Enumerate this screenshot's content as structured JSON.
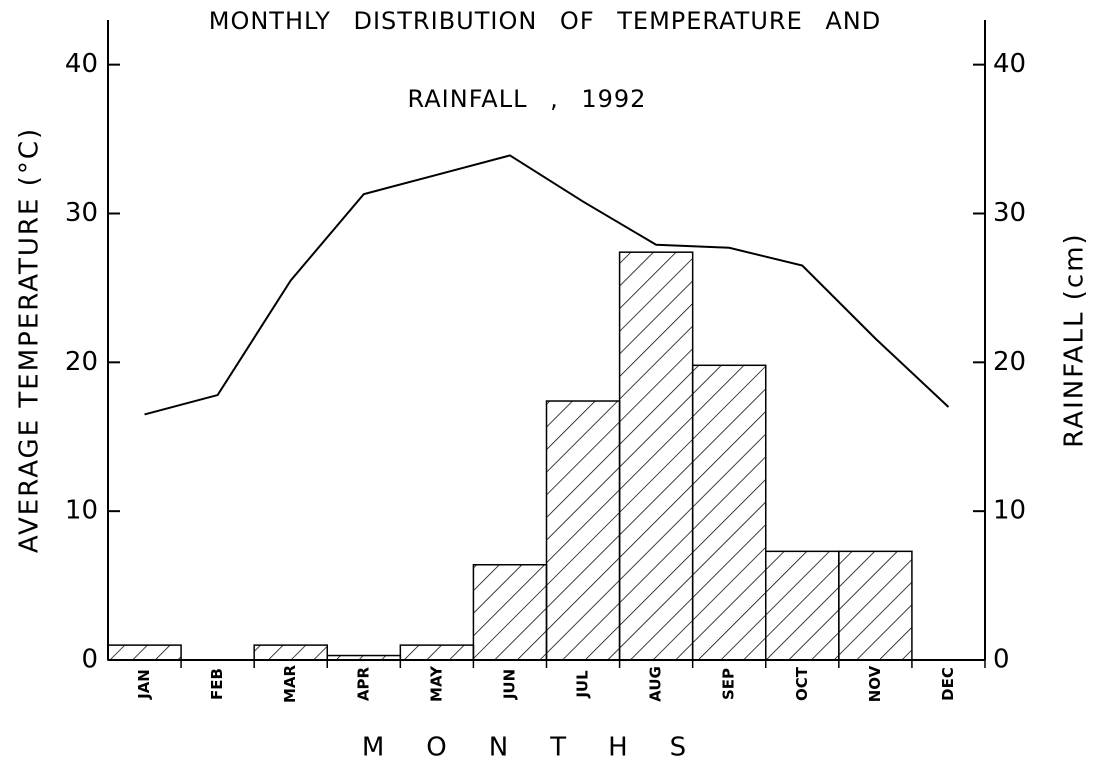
{
  "chart_data": {
    "type": "bar_line",
    "title": [
      "MONTHLY DISTRIBUTION OF TEMPERATURE AND",
      "RAINFALL , 1992"
    ],
    "xlabel": "MONTHS",
    "ylabel": "AVERAGE TEMPERATURE (°C)",
    "y2label": "RAINFALL (cm)",
    "categories": [
      "JAN",
      "FEB",
      "MAR",
      "APR",
      "MAY",
      "JUN",
      "JUL",
      "AUG",
      "SEP",
      "OCT",
      "NOV",
      "DEC"
    ],
    "series": [
      {
        "name": "Temperature",
        "type": "line",
        "color": "#000000",
        "values": [
          16.5,
          17.8,
          25.5,
          31.3,
          32.6,
          33.9,
          30.8,
          27.9,
          27.7,
          26.5,
          21.6,
          17.0
        ]
      },
      {
        "name": "Rainfall",
        "type": "bar",
        "axis": "y2",
        "color": "#000000",
        "values": [
          1.0,
          0,
          1.0,
          0.3,
          1.0,
          6.4,
          17.4,
          27.4,
          19.8,
          7.3,
          7.3,
          0
        ]
      }
    ],
    "ylim": [
      0,
      43
    ],
    "yticks": [
      0,
      10,
      20,
      30,
      40
    ],
    "y2lim": [
      0,
      43
    ],
    "y2ticks": [
      0,
      10,
      20,
      30,
      40
    ]
  }
}
